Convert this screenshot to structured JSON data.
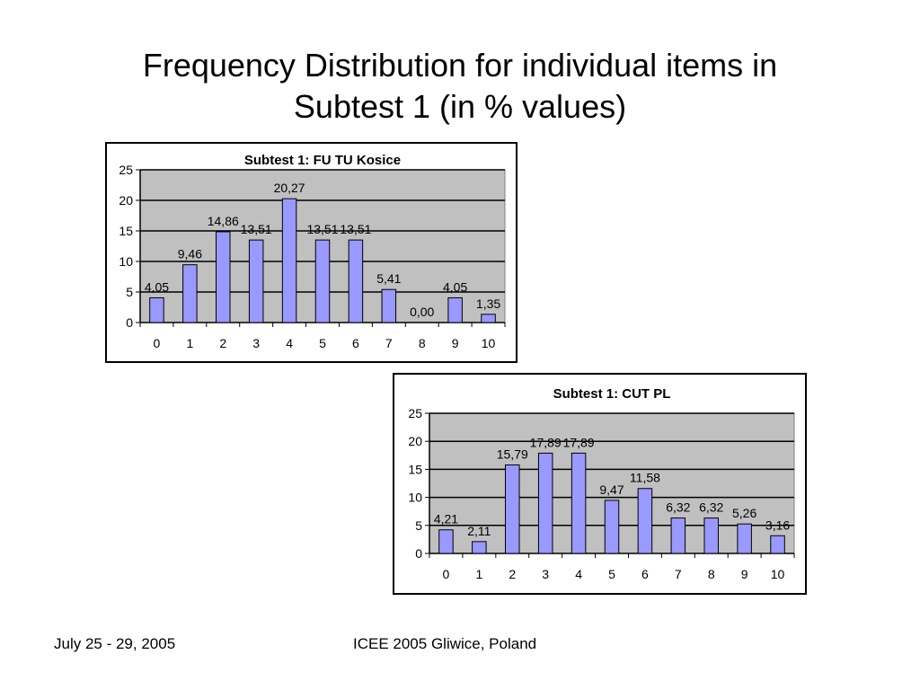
{
  "slide": {
    "title_line1": "Frequency Distribution for individual items in",
    "title_line2": "Subtest 1 (in % values)",
    "footer_date": "July 25 - 29, 2005",
    "footer_conference": "ICEE 2005 Gliwice, Poland"
  },
  "colors": {
    "plot_background": "#c0c0c0",
    "bar_fill": "#9999ff",
    "bar_stroke": "#000000"
  },
  "chart_data": [
    {
      "type": "bar",
      "title": "Subtest 1: FU TU Kosice",
      "categories": [
        "0",
        "1",
        "2",
        "3",
        "4",
        "5",
        "6",
        "7",
        "8",
        "9",
        "10"
      ],
      "values": [
        4.05,
        9.46,
        14.86,
        13.51,
        20.27,
        13.51,
        13.51,
        5.41,
        0.0,
        4.05,
        1.35
      ],
      "value_labels": [
        "4,05",
        "9,46",
        "14,86",
        "13,51",
        "20,27",
        "13,51",
        "13,51",
        "5,41",
        "0,00",
        "4,05",
        "1,35"
      ],
      "ylim": [
        0,
        25
      ],
      "yticks": [
        "0",
        "5",
        "10",
        "15",
        "20",
        "25"
      ],
      "grid": true,
      "legend": "none"
    },
    {
      "type": "bar",
      "title": "Subtest 1: CUT PL",
      "categories": [
        "0",
        "1",
        "2",
        "3",
        "4",
        "5",
        "6",
        "7",
        "8",
        "9",
        "10"
      ],
      "values": [
        4.21,
        2.11,
        15.79,
        17.89,
        17.89,
        9.47,
        11.58,
        6.32,
        6.32,
        5.26,
        3.16
      ],
      "value_labels": [
        "4,21",
        "2,11",
        "15,79",
        "17,89",
        "17,89",
        "9,47",
        "11,58",
        "6,32",
        "6,32",
        "5,26",
        "3,16"
      ],
      "ylim": [
        0,
        25
      ],
      "yticks": [
        "0",
        "5",
        "10",
        "15",
        "20",
        "25"
      ],
      "grid": true,
      "legend": "none"
    }
  ]
}
